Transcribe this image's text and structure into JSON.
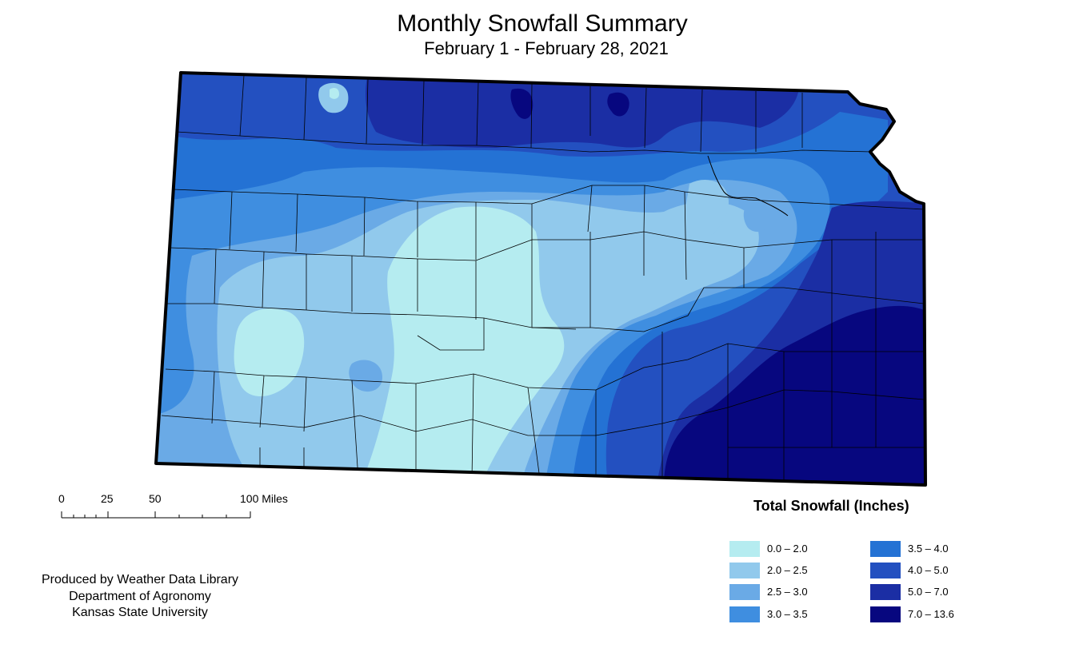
{
  "map": {
    "title": "Monthly Snowfall Summary",
    "subtitle": "February 1 - February 28, 2021",
    "region": "Kansas",
    "scale_bar": {
      "ticks": [
        "0",
        "25",
        "50",
        "100 Miles"
      ]
    },
    "credits": [
      "Produced by Weather Data Library",
      "Department of Agronomy",
      "Kansas State University"
    ],
    "legend": {
      "title": "Total Snowfall (Inches)",
      "items": [
        {
          "label": "0.0 – 2.0",
          "color": "#b5ecf0"
        },
        {
          "label": "2.0 – 2.5",
          "color": "#91c9ec"
        },
        {
          "label": "2.5 – 3.0",
          "color": "#6aaae6"
        },
        {
          "label": "3.0 – 3.5",
          "color": "#3f8ee0"
        },
        {
          "label": "3.5 – 4.0",
          "color": "#2472d4"
        },
        {
          "label": "4.0 – 5.0",
          "color": "#2350c0"
        },
        {
          "label": "5.0 – 7.0",
          "color": "#1b2ea4"
        },
        {
          "label": "7.0 – 13.6",
          "color": "#07077f"
        }
      ]
    }
  }
}
